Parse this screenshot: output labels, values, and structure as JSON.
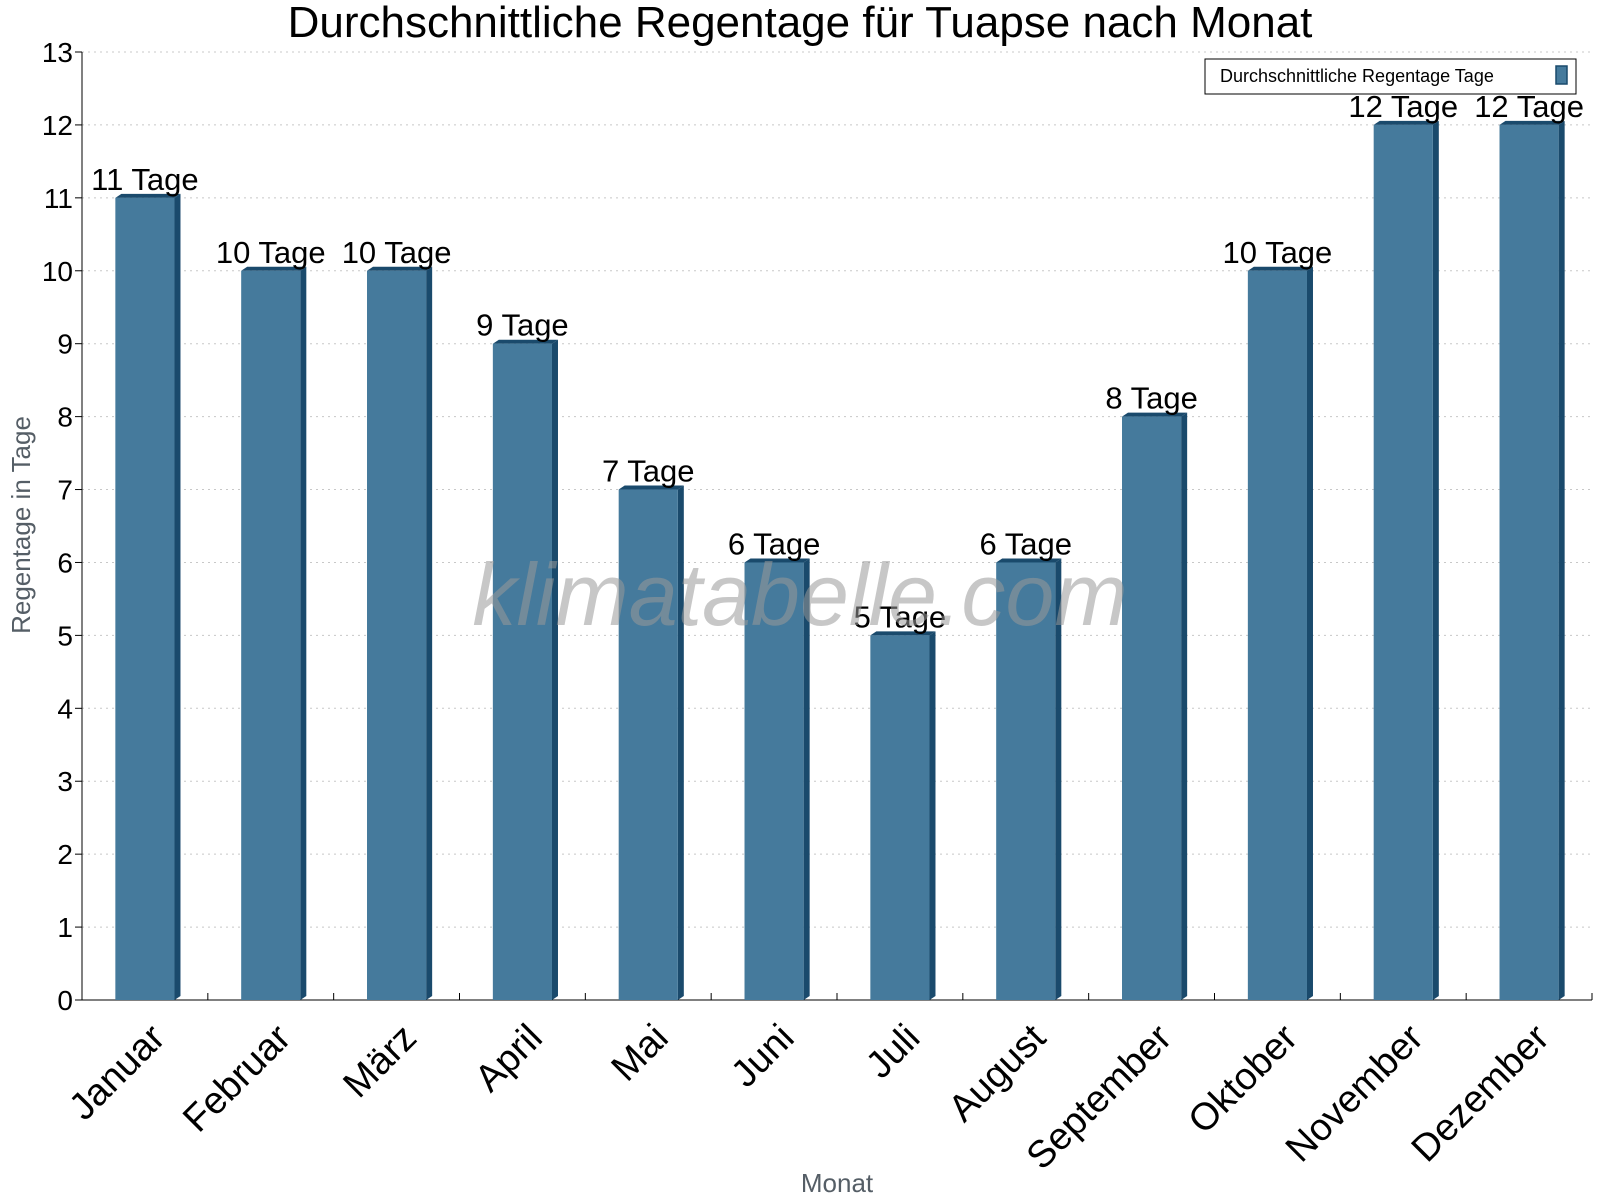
{
  "chart_data": {
    "type": "bar",
    "title": "Durchschnittliche Regentage für Tuapse nach Monat",
    "xlabel": "Monat",
    "ylabel": "Regentage in Tage",
    "categories": [
      "Januar",
      "Februar",
      "März",
      "April",
      "Mai",
      "Juni",
      "Juli",
      "August",
      "September",
      "Oktober",
      "November",
      "Dezember"
    ],
    "series": [
      {
        "name": "Durchschnittliche Regentage Tage",
        "values": [
          11,
          10,
          10,
          9,
          7,
          6,
          5,
          6,
          8,
          10,
          12,
          12
        ],
        "labels": [
          "11 Tage",
          "10 Tage",
          "10 Tage",
          "9 Tage",
          "7 Tage",
          "6 Tage",
          "5 Tage",
          "6 Tage",
          "8 Tage",
          "10 Tage",
          "12 Tage",
          "12 Tage"
        ]
      }
    ],
    "ylim": [
      0,
      13
    ],
    "yticks": [
      0,
      1,
      2,
      3,
      4,
      5,
      6,
      7,
      8,
      9,
      10,
      11,
      12,
      13
    ],
    "grid": true,
    "legend_position": "top-right",
    "bar_color": "#457a9c",
    "bar_side_color": "#1a4a6c",
    "watermark": "klimatabelle.com"
  }
}
